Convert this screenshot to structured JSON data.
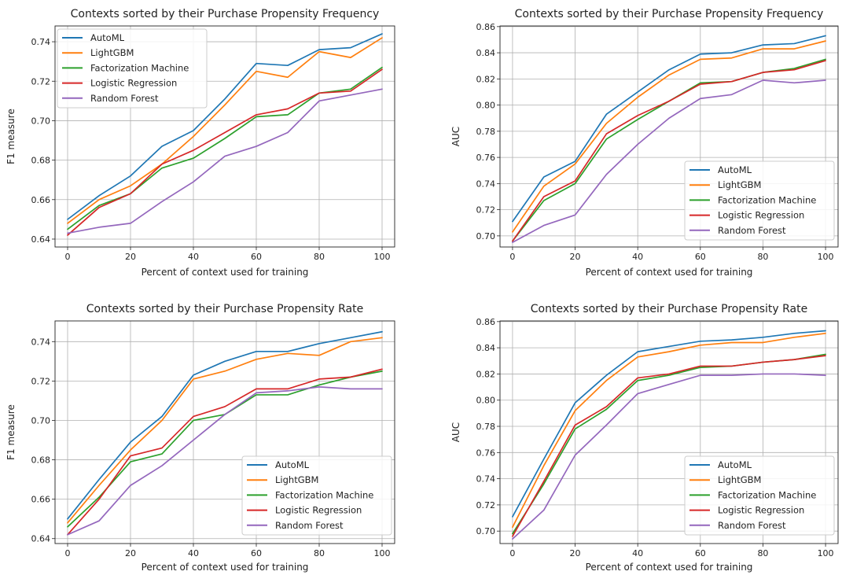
{
  "colors": {
    "AutoML": "#1f77b4",
    "LightGBM": "#ff7f0e",
    "Factorization Machine": "#2ca02c",
    "Logistic Regression": "#d62728",
    "Random Forest": "#9467bd",
    "grid": "#b0b0b0"
  },
  "chart_data": [
    {
      "type": "line",
      "title": "Contexts sorted by their Purchase Propensity Frequency",
      "xlabel": "Percent of context used for training",
      "ylabel": "F1 measure",
      "x": [
        0,
        10,
        20,
        30,
        40,
        50,
        60,
        70,
        80,
        90,
        100
      ],
      "xlim": [
        -4,
        104
      ],
      "ylim": [
        0.636,
        0.748
      ],
      "xticks": [
        "0",
        "20",
        "40",
        "60",
        "80",
        "100"
      ],
      "yticks": [
        "0.64",
        "0.66",
        "0.68",
        "0.70",
        "0.72",
        "0.74"
      ],
      "grid": true,
      "legend": "upper left",
      "series": [
        {
          "name": "AutoML",
          "values": [
            0.65,
            0.662,
            0.672,
            0.687,
            0.695,
            0.711,
            0.729,
            0.728,
            0.736,
            0.737,
            0.744
          ]
        },
        {
          "name": "LightGBM",
          "values": [
            0.648,
            0.66,
            0.667,
            0.678,
            0.692,
            0.708,
            0.725,
            0.722,
            0.735,
            0.732,
            0.742
          ]
        },
        {
          "name": "Factorization Machine",
          "values": [
            0.645,
            0.657,
            0.663,
            0.676,
            0.681,
            0.691,
            0.702,
            0.703,
            0.714,
            0.716,
            0.727
          ]
        },
        {
          "name": "Logistic Regression",
          "values": [
            0.642,
            0.656,
            0.663,
            0.678,
            0.685,
            0.694,
            0.703,
            0.706,
            0.714,
            0.715,
            0.726
          ]
        },
        {
          "name": "Random Forest",
          "values": [
            0.643,
            0.646,
            0.648,
            0.659,
            0.669,
            0.682,
            0.687,
            0.694,
            0.71,
            0.713,
            0.716
          ]
        }
      ]
    },
    {
      "type": "line",
      "title": "Contexts sorted by their Purchase Propensity Frequency",
      "xlabel": "Percent of context used for training",
      "ylabel": "AUC",
      "x": [
        0,
        10,
        20,
        30,
        40,
        50,
        60,
        70,
        80,
        90,
        100
      ],
      "xlim": [
        -4,
        104
      ],
      "ylim": [
        0.6915,
        0.8605
      ],
      "xticks": [
        "0",
        "20",
        "40",
        "60",
        "80",
        "100"
      ],
      "yticks": [
        "0.70",
        "0.72",
        "0.74",
        "0.76",
        "0.78",
        "0.80",
        "0.82",
        "0.84",
        "0.86"
      ],
      "grid": true,
      "legend": "lower right",
      "series": [
        {
          "name": "AutoML",
          "values": [
            0.711,
            0.745,
            0.757,
            0.793,
            0.81,
            0.827,
            0.839,
            0.84,
            0.846,
            0.847,
            0.853
          ]
        },
        {
          "name": "LightGBM",
          "values": [
            0.703,
            0.738,
            0.755,
            0.786,
            0.806,
            0.823,
            0.835,
            0.836,
            0.843,
            0.843,
            0.849
          ]
        },
        {
          "name": "Factorization Machine",
          "values": [
            0.696,
            0.727,
            0.74,
            0.774,
            0.789,
            0.803,
            0.817,
            0.818,
            0.825,
            0.828,
            0.835
          ]
        },
        {
          "name": "Logistic Regression",
          "values": [
            0.696,
            0.73,
            0.742,
            0.778,
            0.792,
            0.803,
            0.816,
            0.818,
            0.825,
            0.827,
            0.834
          ]
        },
        {
          "name": "Random Forest",
          "values": [
            0.695,
            0.708,
            0.716,
            0.747,
            0.77,
            0.79,
            0.805,
            0.808,
            0.819,
            0.817,
            0.819
          ]
        }
      ]
    },
    {
      "type": "line",
      "title": "Contexts sorted by their Purchase Propensity Rate",
      "xlabel": "Percent of context used for training",
      "ylabel": "F1 measure",
      "x": [
        0,
        10,
        20,
        30,
        40,
        50,
        60,
        70,
        80,
        90,
        100
      ],
      "xlim": [
        -4,
        104
      ],
      "ylim": [
        0.6375,
        0.7505
      ],
      "xticks": [
        "0",
        "20",
        "40",
        "60",
        "80",
        "100"
      ],
      "yticks": [
        "0.64",
        "0.66",
        "0.68",
        "0.70",
        "0.72",
        "0.74"
      ],
      "grid": true,
      "legend": "lower right",
      "series": [
        {
          "name": "AutoML",
          "values": [
            0.65,
            0.67,
            0.689,
            0.702,
            0.723,
            0.73,
            0.735,
            0.735,
            0.739,
            0.742,
            0.745
          ]
        },
        {
          "name": "LightGBM",
          "values": [
            0.648,
            0.667,
            0.685,
            0.7,
            0.721,
            0.725,
            0.731,
            0.734,
            0.733,
            0.74,
            0.742
          ]
        },
        {
          "name": "Factorization Machine",
          "values": [
            0.646,
            0.661,
            0.679,
            0.683,
            0.7,
            0.703,
            0.713,
            0.713,
            0.718,
            0.722,
            0.725
          ]
        },
        {
          "name": "Logistic Regression",
          "values": [
            0.642,
            0.66,
            0.682,
            0.686,
            0.702,
            0.707,
            0.716,
            0.716,
            0.721,
            0.722,
            0.726
          ]
        },
        {
          "name": "Random Forest",
          "values": [
            0.642,
            0.649,
            0.667,
            0.677,
            0.69,
            0.703,
            0.714,
            0.715,
            0.717,
            0.716,
            0.716
          ]
        }
      ]
    },
    {
      "type": "line",
      "title": "Contexts sorted by their Purchase Propensity Rate",
      "xlabel": "Percent of context used for training",
      "ylabel": "AUC",
      "x": [
        0,
        10,
        20,
        30,
        40,
        50,
        60,
        70,
        80,
        90,
        100
      ],
      "xlim": [
        -4,
        104
      ],
      "ylim": [
        0.6905,
        0.8605
      ],
      "xticks": [
        "0",
        "20",
        "40",
        "60",
        "80",
        "100"
      ],
      "yticks": [
        "0.70",
        "0.72",
        "0.74",
        "0.76",
        "0.78",
        "0.80",
        "0.82",
        "0.84",
        "0.86"
      ],
      "grid": true,
      "legend": "lower right",
      "series": [
        {
          "name": "AutoML",
          "values": [
            0.711,
            0.755,
            0.798,
            0.819,
            0.837,
            0.841,
            0.845,
            0.846,
            0.848,
            0.851,
            0.853
          ]
        },
        {
          "name": "LightGBM",
          "values": [
            0.703,
            0.75,
            0.792,
            0.815,
            0.833,
            0.837,
            0.842,
            0.844,
            0.844,
            0.848,
            0.851
          ]
        },
        {
          "name": "Factorization Machine",
          "values": [
            0.698,
            0.736,
            0.778,
            0.793,
            0.815,
            0.819,
            0.825,
            0.826,
            0.829,
            0.831,
            0.835
          ]
        },
        {
          "name": "Logistic Regression",
          "values": [
            0.696,
            0.738,
            0.781,
            0.795,
            0.817,
            0.82,
            0.826,
            0.826,
            0.829,
            0.831,
            0.834
          ]
        },
        {
          "name": "Random Forest",
          "values": [
            0.694,
            0.716,
            0.758,
            0.781,
            0.805,
            0.812,
            0.819,
            0.819,
            0.82,
            0.82,
            0.819
          ]
        }
      ]
    }
  ]
}
